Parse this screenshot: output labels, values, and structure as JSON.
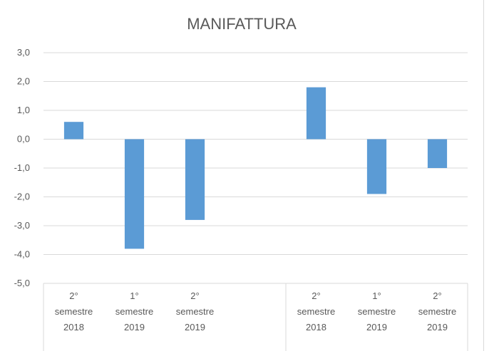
{
  "chart_data": {
    "type": "bar",
    "title": "MANIFATTURA",
    "xlabel": "",
    "ylabel": "",
    "ylim": [
      -5,
      3
    ],
    "yticks": [
      3,
      2,
      1,
      0,
      -1,
      -2,
      -3,
      -4,
      -5
    ],
    "ytick_labels": [
      "3,0",
      "2,0",
      "1,0",
      "0,0",
      "-1,0",
      "-2,0",
      "-3,0",
      "-4,0",
      "-5,0"
    ],
    "grid": true,
    "legend": "none",
    "bar_color": "#5b9bd5",
    "groups": [
      {
        "name": "",
        "categories": [
          [
            "2°",
            "semestre",
            "2018"
          ],
          [
            "1°",
            "semestre",
            "2019"
          ],
          [
            "2°",
            "semestre",
            "2019"
          ],
          [
            "",
            "",
            ""
          ]
        ],
        "values": [
          0.6,
          -3.8,
          -2.8,
          null
        ]
      },
      {
        "name": "",
        "categories": [
          [
            "2°",
            "semestre",
            "2018"
          ],
          [
            "1°",
            "semestre",
            "2019"
          ],
          [
            "2°",
            "semestre",
            "2019"
          ]
        ],
        "values": [
          1.8,
          -1.9,
          -1.0
        ]
      }
    ]
  }
}
